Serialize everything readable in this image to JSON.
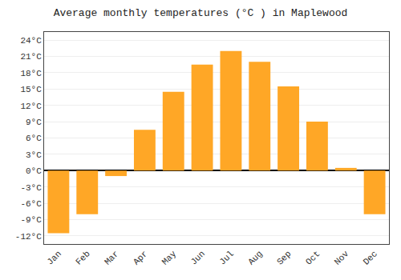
{
  "chart_data": {
    "type": "bar",
    "title": "Average monthly temperatures (°C ) in Maplewood",
    "categories": [
      "Jan",
      "Feb",
      "Mar",
      "Apr",
      "May",
      "Jun",
      "Jul",
      "Aug",
      "Sep",
      "Oct",
      "Nov",
      "Dec"
    ],
    "values": [
      -11.5,
      -8.0,
      -1.0,
      7.5,
      14.5,
      19.5,
      22.0,
      20.0,
      15.5,
      9.0,
      0.5,
      -8.0
    ],
    "color": "#FFA726",
    "ylim": [
      -13.5,
      25.5
    ],
    "yticks": [
      {
        "value": -12,
        "label": "-12°C"
      },
      {
        "value": -9,
        "label": "-9°C"
      },
      {
        "value": -6,
        "label": "-6°C"
      },
      {
        "value": -3,
        "label": "-3°C"
      },
      {
        "value": 0,
        "label": "0°C"
      },
      {
        "value": 3,
        "label": "3°C"
      },
      {
        "value": 6,
        "label": "6°C"
      },
      {
        "value": 9,
        "label": "9°C"
      },
      {
        "value": 12,
        "label": "12°C"
      },
      {
        "value": 15,
        "label": "15°C"
      },
      {
        "value": 18,
        "label": "18°C"
      },
      {
        "value": 21,
        "label": "21°C"
      },
      {
        "value": 24,
        "label": "24°C"
      }
    ],
    "grid": true
  }
}
